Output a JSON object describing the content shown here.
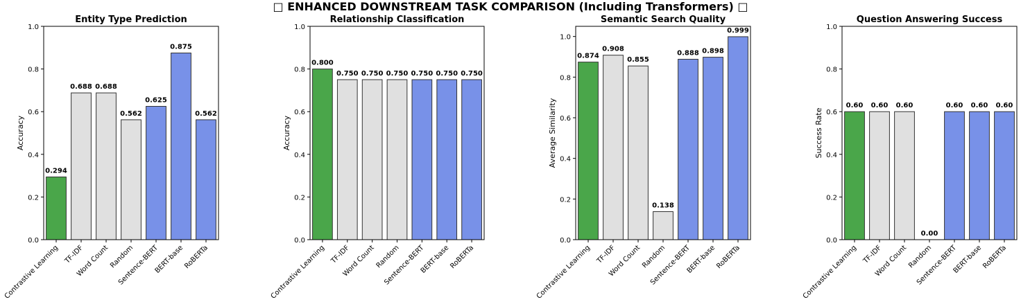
{
  "suptitle": "□ ENHANCED DOWNSTREAM TASK COMPARISON (Including Transformers) □",
  "colors": {
    "green": "#4aa64a",
    "gray": "#e0e0e0",
    "blue": "#7891e8",
    "edge": "#333333"
  },
  "chart_data": [
    {
      "type": "bar",
      "title": "Entity Type Prediction",
      "ylabel": "Accuracy",
      "xlabel": "",
      "ylim": [
        0,
        1.0
      ],
      "yticks": [
        "0.0",
        "0.2",
        "0.4",
        "0.6",
        "0.8",
        "1.0"
      ],
      "categories": [
        "Contrastive Learning",
        "TF-IDF",
        "Word Count",
        "Random",
        "Sentence-BERT",
        "BERT-base",
        "RoBERTa"
      ],
      "values": [
        0.294,
        0.688,
        0.688,
        0.562,
        0.625,
        0.875,
        0.562
      ],
      "value_labels": [
        "0.294",
        "0.688",
        "0.688",
        "0.562",
        "0.625",
        "0.875",
        "0.562"
      ],
      "bar_colors": [
        "green",
        "gray",
        "gray",
        "gray",
        "blue",
        "blue",
        "blue"
      ]
    },
    {
      "type": "bar",
      "title": "Relationship Classification",
      "ylabel": "Accuracy",
      "xlabel": "",
      "ylim": [
        0,
        1.0
      ],
      "yticks": [
        "0.0",
        "0.2",
        "0.4",
        "0.6",
        "0.8",
        "1.0"
      ],
      "categories": [
        "Contrastive Learning",
        "TF-IDF",
        "Word Count",
        "Random",
        "Sentence-BERT",
        "BERT-base",
        "RoBERTa"
      ],
      "values": [
        0.8,
        0.75,
        0.75,
        0.75,
        0.75,
        0.75,
        0.75
      ],
      "value_labels": [
        "0.800",
        "0.750",
        "0.750",
        "0.750",
        "0.750",
        "0.750",
        "0.750"
      ],
      "bar_colors": [
        "green",
        "gray",
        "gray",
        "gray",
        "blue",
        "blue",
        "blue"
      ]
    },
    {
      "type": "bar",
      "title": "Semantic Search Quality",
      "ylabel": "Average Similarity",
      "xlabel": "",
      "ylim": [
        0,
        1.05
      ],
      "yticks": [
        "0.0",
        "0.2",
        "0.4",
        "0.6",
        "0.8",
        "1.0"
      ],
      "categories": [
        "Contrastive Learning",
        "TF-IDF",
        "Word Count",
        "Random",
        "Sentence-BERT",
        "BERT-base",
        "RoBERTa"
      ],
      "values": [
        0.874,
        0.908,
        0.855,
        0.138,
        0.888,
        0.898,
        0.999
      ],
      "value_labels": [
        "0.874",
        "0.908",
        "0.855",
        "0.138",
        "0.888",
        "0.898",
        "0.999"
      ],
      "bar_colors": [
        "green",
        "gray",
        "gray",
        "gray",
        "blue",
        "blue",
        "blue"
      ]
    },
    {
      "type": "bar",
      "title": "Question Answering Success",
      "ylabel": "Success Rate",
      "xlabel": "",
      "ylim": [
        0,
        1.0
      ],
      "yticks": [
        "0.0",
        "0.2",
        "0.4",
        "0.6",
        "0.8",
        "1.0"
      ],
      "categories": [
        "Contrastive Learning",
        "TF-IDF",
        "Word Count",
        "Random",
        "Sentence-BERT",
        "BERT-base",
        "RoBERTa"
      ],
      "values": [
        0.6,
        0.6,
        0.6,
        0.0,
        0.6,
        0.6,
        0.6
      ],
      "value_labels": [
        "0.60",
        "0.60",
        "0.60",
        "0.00",
        "0.60",
        "0.60",
        "0.60"
      ],
      "bar_colors": [
        "green",
        "gray",
        "gray",
        "gray",
        "blue",
        "blue",
        "blue"
      ]
    }
  ]
}
